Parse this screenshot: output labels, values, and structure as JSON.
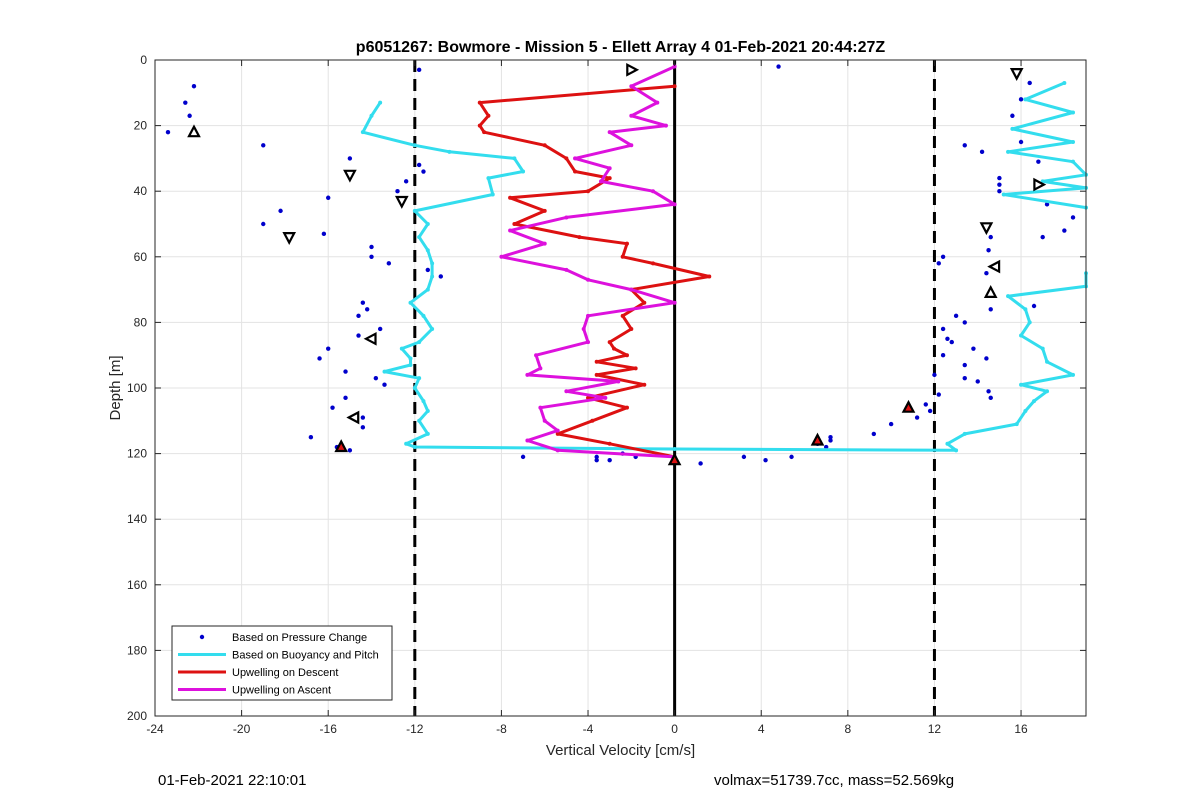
{
  "chart_data": {
    "type": "scatter",
    "title": "p6051267: Bowmore - Mission 5 - Ellett Array 4 01-Feb-2021 20:44:27Z",
    "xlabel": "Vertical Velocity [cm/s]",
    "ylabel": "Depth [m]",
    "xlim": [
      -24,
      19
    ],
    "ylim": [
      200,
      0
    ],
    "y_reversed": true,
    "xticks": [
      "-24",
      "-20",
      "-16",
      "-12",
      "-8",
      "-4",
      "0",
      "4",
      "8",
      "12",
      "16"
    ],
    "yticks": [
      "0",
      "20",
      "40",
      "60",
      "80",
      "100",
      "120",
      "140",
      "160",
      "180",
      "200"
    ],
    "grid": true,
    "legend_position": "bottom-left",
    "vertical_lines": [
      {
        "x": -12,
        "style": "dashed",
        "color": "#000000"
      },
      {
        "x": 0,
        "style": "solid",
        "color": "#000000"
      },
      {
        "x": 12,
        "style": "dashed",
        "color": "#000000"
      }
    ],
    "series": [
      {
        "name": "Based on Pressure Change",
        "kind": "points",
        "color": "#0000cc",
        "points": [
          [
            -22.2,
            8
          ],
          [
            -22.6,
            13
          ],
          [
            -22.4,
            17
          ],
          [
            -23.4,
            22
          ],
          [
            -19.0,
            26
          ],
          [
            -15.0,
            30
          ],
          [
            -16.0,
            42
          ],
          [
            -18.2,
            46
          ],
          [
            -19.0,
            50
          ],
          [
            -16.2,
            53
          ],
          [
            -14.0,
            57
          ],
          [
            -14.0,
            60
          ],
          [
            -13.2,
            62
          ],
          [
            -14.4,
            74
          ],
          [
            -14.2,
            76
          ],
          [
            -14.6,
            78
          ],
          [
            -13.6,
            82
          ],
          [
            -14.6,
            84
          ],
          [
            -16.0,
            88
          ],
          [
            -16.4,
            91
          ],
          [
            -15.2,
            95
          ],
          [
            -13.8,
            97
          ],
          [
            -13.4,
            99
          ],
          [
            -15.2,
            103
          ],
          [
            -15.8,
            106
          ],
          [
            -14.4,
            109
          ],
          [
            -14.4,
            112
          ],
          [
            -16.8,
            115
          ],
          [
            -15.6,
            118
          ],
          [
            -15.0,
            119
          ],
          [
            -12.8,
            40
          ],
          [
            -12.4,
            37
          ],
          [
            -11.8,
            32
          ],
          [
            -11.6,
            34
          ],
          [
            -11.4,
            64
          ],
          [
            -10.8,
            66
          ],
          [
            -11.8,
            3
          ],
          [
            -7.0,
            121
          ],
          [
            -3.6,
            121
          ],
          [
            -3.6,
            122
          ],
          [
            -3.0,
            122
          ],
          [
            -2.4,
            120
          ],
          [
            -1.8,
            121
          ],
          [
            1.2,
            123
          ],
          [
            3.2,
            121
          ],
          [
            4.2,
            122
          ],
          [
            5.4,
            121
          ],
          [
            4.8,
            2
          ],
          [
            6.6,
            117
          ],
          [
            7.2,
            116
          ],
          [
            7.2,
            115
          ],
          [
            7.0,
            118
          ],
          [
            9.2,
            114
          ],
          [
            10.0,
            111
          ],
          [
            11.2,
            109
          ],
          [
            11.6,
            105
          ],
          [
            11.8,
            107
          ],
          [
            12.0,
            96
          ],
          [
            12.2,
            102
          ],
          [
            12.4,
            90
          ],
          [
            12.4,
            82
          ],
          [
            12.6,
            85
          ],
          [
            12.8,
            86
          ],
          [
            13.0,
            78
          ],
          [
            13.4,
            97
          ],
          [
            13.4,
            80
          ],
          [
            13.4,
            26
          ],
          [
            13.8,
            88
          ],
          [
            13.4,
            93
          ],
          [
            12.4,
            60
          ],
          [
            12.2,
            62
          ],
          [
            14.0,
            98
          ],
          [
            14.4,
            65
          ],
          [
            14.2,
            28
          ],
          [
            14.4,
            91
          ],
          [
            14.6,
            76
          ],
          [
            14.5,
            58
          ],
          [
            14.6,
            54
          ],
          [
            14.5,
            101
          ],
          [
            14.6,
            103
          ],
          [
            15.0,
            36
          ],
          [
            15.0,
            38
          ],
          [
            15.0,
            40
          ],
          [
            15.6,
            17
          ],
          [
            15.8,
            21
          ],
          [
            16.0,
            12
          ],
          [
            16.0,
            25
          ],
          [
            16.4,
            7
          ],
          [
            16.6,
            75
          ],
          [
            16.8,
            31
          ],
          [
            17.0,
            54
          ],
          [
            17.2,
            44
          ],
          [
            18.0,
            52
          ],
          [
            18.4,
            48
          ]
        ]
      },
      {
        "name": "Based on Buoyancy and Pitch",
        "kind": "line",
        "color": "#33ddee",
        "segments": [
          [
            [
              -13.6,
              13
            ],
            [
              -14.0,
              17
            ],
            [
              -14.4,
              22
            ],
            [
              -12.0,
              26
            ],
            [
              -10.4,
              28
            ],
            [
              -7.4,
              30
            ],
            [
              -7.0,
              34
            ],
            [
              -8.6,
              36
            ],
            [
              -8.4,
              41
            ],
            [
              -12.0,
              46
            ],
            [
              -11.4,
              50
            ],
            [
              -11.8,
              54
            ],
            [
              -11.4,
              58
            ],
            [
              -11.2,
              62
            ],
            [
              -11.2,
              66
            ],
            [
              -11.4,
              70
            ],
            [
              -12.2,
              74
            ],
            [
              -11.6,
              78
            ],
            [
              -11.2,
              82
            ],
            [
              -11.8,
              86
            ],
            [
              -12.6,
              88
            ],
            [
              -12.2,
              91
            ],
            [
              -12.2,
              93
            ],
            [
              -13.4,
              95
            ],
            [
              -11.8,
              97
            ],
            [
              -12.0,
              100
            ],
            [
              -11.6,
              104
            ],
            [
              -11.4,
              107
            ],
            [
              -11.8,
              110
            ],
            [
              -11.4,
              114
            ],
            [
              -12.4,
              117
            ],
            [
              -12.0,
              118
            ],
            [
              0,
              118.6
            ],
            [
              13.0,
              119
            ],
            [
              12.6,
              117
            ],
            [
              13.4,
              114
            ],
            [
              15.8,
              111
            ],
            [
              16.2,
              107
            ],
            [
              16.6,
              104
            ],
            [
              17.2,
              101
            ],
            [
              16.0,
              99
            ],
            [
              18.4,
              96
            ],
            [
              17.2,
              92
            ],
            [
              17.0,
              88
            ],
            [
              16.0,
              84
            ],
            [
              16.4,
              80
            ],
            [
              16.2,
              76
            ],
            [
              15.4,
              72
            ],
            [
              19.0,
              69
            ],
            [
              19.0,
              65
            ]
          ],
          [
            [
              18.0,
              7
            ],
            [
              16.2,
              12
            ],
            [
              18.4,
              16
            ],
            [
              15.6,
              21
            ],
            [
              18.4,
              25
            ],
            [
              15.4,
              28
            ],
            [
              18.4,
              31
            ],
            [
              19.0,
              35
            ],
            [
              17.0,
              37
            ],
            [
              19.0,
              39
            ],
            [
              15.2,
              41
            ],
            [
              19.0,
              45
            ]
          ]
        ]
      },
      {
        "name": "Upwelling on Descent",
        "kind": "line",
        "color": "#dd1111",
        "points": [
          [
            0,
            8
          ],
          [
            -9.0,
            13
          ],
          [
            -8.6,
            17
          ],
          [
            -9.0,
            20
          ],
          [
            -8.8,
            22
          ],
          [
            -6.0,
            26
          ],
          [
            -5.0,
            30
          ],
          [
            -4.6,
            34
          ],
          [
            -3.0,
            36
          ],
          [
            -4.0,
            40
          ],
          [
            -7.6,
            42
          ],
          [
            -6.0,
            46
          ],
          [
            -7.4,
            50
          ],
          [
            -4.4,
            54
          ],
          [
            -2.2,
            56
          ],
          [
            -2.4,
            60
          ],
          [
            -1.0,
            62
          ],
          [
            1.6,
            66
          ],
          [
            -2.0,
            70
          ],
          [
            -1.4,
            74
          ],
          [
            -2.4,
            78
          ],
          [
            -2.0,
            82
          ],
          [
            -3.0,
            86
          ],
          [
            -2.8,
            88
          ],
          [
            -2.2,
            90
          ],
          [
            -3.6,
            92
          ],
          [
            -1.8,
            94
          ],
          [
            -3.6,
            96
          ],
          [
            -1.4,
            99
          ],
          [
            -4.0,
            103
          ],
          [
            -2.2,
            106
          ],
          [
            -3.8,
            110
          ],
          [
            -5.4,
            114
          ],
          [
            -3.0,
            117
          ],
          [
            0,
            121
          ]
        ]
      },
      {
        "name": "Upwelling on Ascent",
        "kind": "line",
        "color": "#dd11dd",
        "points": [
          [
            0,
            2
          ],
          [
            -2.0,
            8
          ],
          [
            -0.8,
            13
          ],
          [
            -2.0,
            17
          ],
          [
            -0.4,
            20
          ],
          [
            -3.0,
            22
          ],
          [
            -2.0,
            26
          ],
          [
            -4.6,
            30
          ],
          [
            -3.0,
            33
          ],
          [
            -3.4,
            37
          ],
          [
            -1.0,
            40
          ],
          [
            0,
            44
          ],
          [
            -5.0,
            48
          ],
          [
            -7.6,
            52
          ],
          [
            -6.0,
            56
          ],
          [
            -8.0,
            60
          ],
          [
            -5.0,
            64
          ],
          [
            -4.0,
            67
          ],
          [
            -2.0,
            70
          ],
          [
            0,
            74
          ],
          [
            -4.0,
            78
          ],
          [
            -4.2,
            82
          ],
          [
            -4.0,
            86
          ],
          [
            -6.4,
            90
          ],
          [
            -6.2,
            94
          ],
          [
            -6.8,
            96
          ],
          [
            -2.6,
            98
          ],
          [
            -5.0,
            101
          ],
          [
            -3.2,
            103
          ],
          [
            -6.2,
            106
          ],
          [
            -6.0,
            110
          ],
          [
            -5.4,
            113
          ],
          [
            -6.8,
            116
          ],
          [
            -5.4,
            119
          ],
          [
            0,
            121
          ]
        ]
      },
      {
        "name": "",
        "kind": "markers",
        "markers": [
          {
            "x": -22.2,
            "y": 22,
            "shape": "tri-up",
            "fill": "#ffffff"
          },
          {
            "x": -15.0,
            "y": 35,
            "shape": "tri-down",
            "fill": "#ffffff"
          },
          {
            "x": -12.6,
            "y": 43,
            "shape": "tri-down",
            "fill": "#ffffff"
          },
          {
            "x": -17.8,
            "y": 54,
            "shape": "tri-down",
            "fill": "#ffffff"
          },
          {
            "x": -14.0,
            "y": 85,
            "shape": "tri-left",
            "fill": "#ffffff"
          },
          {
            "x": -14.8,
            "y": 109,
            "shape": "tri-left",
            "fill": "#ffffff"
          },
          {
            "x": -15.4,
            "y": 118,
            "shape": "tri-up",
            "fill": "#dd1111"
          },
          {
            "x": -2.0,
            "y": 3,
            "shape": "tri-right",
            "fill": "#ffffff"
          },
          {
            "x": 0,
            "y": 122,
            "shape": "tri-up",
            "fill": "#dd1111"
          },
          {
            "x": 6.6,
            "y": 116,
            "shape": "tri-up",
            "fill": "#dd1111"
          },
          {
            "x": 10.8,
            "y": 106,
            "shape": "tri-up",
            "fill": "#dd1111"
          },
          {
            "x": 15.8,
            "y": 4,
            "shape": "tri-down",
            "fill": "#ffffff"
          },
          {
            "x": 16.8,
            "y": 38,
            "shape": "tri-right",
            "fill": "#ffffff"
          },
          {
            "x": 14.4,
            "y": 51,
            "shape": "tri-down",
            "fill": "#ffffff"
          },
          {
            "x": 14.8,
            "y": 63,
            "shape": "tri-left",
            "fill": "#ffffff"
          },
          {
            "x": 14.6,
            "y": 71,
            "shape": "tri-up",
            "fill": "#ffffff"
          }
        ]
      }
    ]
  },
  "footer": {
    "left": "01-Feb-2021 22:10:01",
    "right": "volmax=51739.7cc, mass=52.569kg"
  }
}
